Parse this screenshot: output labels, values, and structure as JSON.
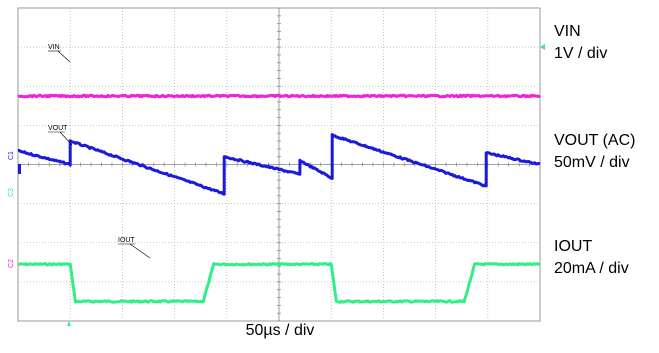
{
  "chart_data": {
    "type": "line",
    "grid": true,
    "divisions": {
      "x": 10,
      "y": 8
    },
    "xlabel": "50µs / div",
    "colors": {
      "vin": "#33ee88",
      "vout": "#1a1adc",
      "iout": "#ee22dd",
      "grid": "#b4b4b4"
    },
    "series": [
      {
        "key": "vin",
        "name": "VIN",
        "scale": "1V / div",
        "trace_tag": "VIN",
        "x_div": [
          0,
          1.0,
          1.1,
          3.55,
          3.75,
          6.0,
          6.1,
          8.55,
          8.75,
          10
        ],
        "y_div": [
          -2.55,
          -2.55,
          -3.5,
          -3.5,
          -2.55,
          -2.55,
          -3.5,
          -3.5,
          -2.55,
          -2.55
        ]
      },
      {
        "key": "vout",
        "name": "VOUT (AC)",
        "scale": "50mV / div",
        "trace_tag": "VOUT",
        "x_div": [
          0,
          1.0,
          1.0,
          3.95,
          3.95,
          5.4,
          5.4,
          6.02,
          6.02,
          8.97,
          8.97,
          10
        ],
        "y_div": [
          0.35,
          0.0,
          0.6,
          -0.75,
          0.2,
          -0.25,
          0.1,
          -0.35,
          0.75,
          -0.55,
          0.3,
          0.0
        ]
      },
      {
        "key": "iout",
        "name": "IOUT",
        "scale": "20mA / div",
        "trace_tag": "IOUT",
        "x_div": [
          0,
          10
        ],
        "y_div": [
          1.75,
          1.75
        ]
      }
    ],
    "channel_markers": [
      "C1",
      "C3",
      "C2"
    ]
  }
}
